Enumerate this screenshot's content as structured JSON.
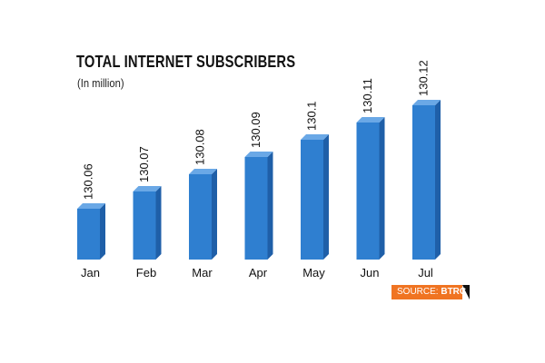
{
  "header": {
    "title": "TOTAL INTERNET SUBSCRIBERS",
    "subtitle": "(In million)"
  },
  "source": {
    "label": "SOURCE: ",
    "value": "BTRC"
  },
  "colors": {
    "bar_front": "#2f7fd0",
    "bar_side": "#1f5fa8",
    "bar_top": "#6aa8e6",
    "badge": "#f07422"
  },
  "chart_data": {
    "type": "bar",
    "title": "TOTAL INTERNET SUBSCRIBERS",
    "subtitle": "(In million)",
    "categories": [
      "Jan",
      "Feb",
      "Mar",
      "Apr",
      "May",
      "Jun",
      "Jul"
    ],
    "values": [
      130.06,
      130.07,
      130.08,
      130.09,
      130.1,
      130.11,
      130.12
    ],
    "value_labels": [
      "130.06",
      "130.07",
      "130.08",
      "130.09",
      "130.1",
      "130.11",
      "130.12"
    ],
    "style": "3d",
    "legend": "none",
    "grid": false
  }
}
